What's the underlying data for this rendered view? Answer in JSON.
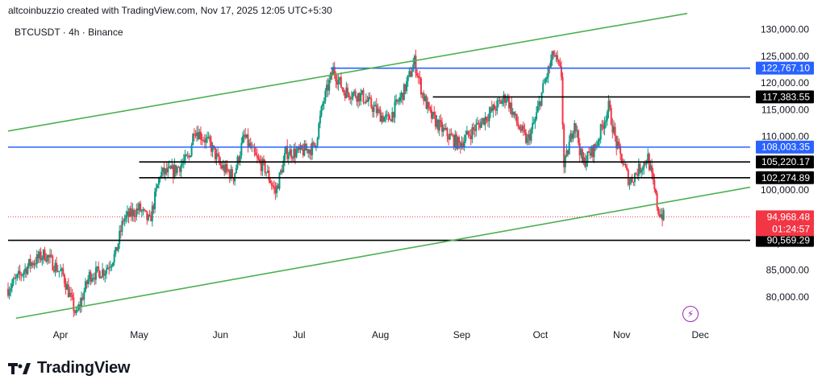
{
  "header": {
    "attribution": "altcoinbuzzio created with TradingView.com, Nov 17, 2025 12:05 UTC+5:30"
  },
  "symbol": {
    "label": "BTCUSDT · 4h · Binance"
  },
  "footer": {
    "brand": "TradingView"
  },
  "chart_data": {
    "type": "candlestick",
    "symbol": "BTCUSDT",
    "interval": "4h",
    "exchange": "Binance",
    "ylim": [
      75000,
      132500
    ],
    "x_range": [
      "2025-03-12",
      "2025-12-20"
    ],
    "y_ticks": [
      80000,
      85000,
      90000,
      95000,
      100000,
      105000,
      110000,
      115000,
      120000,
      125000,
      130000
    ],
    "y_tick_labels": [
      "80,000.00",
      "85,000.00",
      "90,000.00",
      "95,000.00",
      "100,000.00",
      "105,000.00",
      "110,000.00",
      "115,000.00",
      "120,000.00",
      "125,000.00",
      "130,000.00"
    ],
    "x_ticks": [
      {
        "label": "Apr",
        "date": "2025-04-01"
      },
      {
        "label": "May",
        "date": "2025-05-01"
      },
      {
        "label": "Jun",
        "date": "2025-06-01"
      },
      {
        "label": "Jul",
        "date": "2025-07-01"
      },
      {
        "label": "Aug",
        "date": "2025-08-01"
      },
      {
        "label": "Sep",
        "date": "2025-09-01"
      },
      {
        "label": "Oct",
        "date": "2025-10-01"
      },
      {
        "label": "Nov",
        "date": "2025-11-01"
      },
      {
        "label": "Dec",
        "date": "2025-12-01"
      }
    ],
    "price_path": [
      [
        "2025-03-12",
        81500
      ],
      [
        "2025-03-20",
        86000
      ],
      [
        "2025-03-26",
        88000
      ],
      [
        "2025-04-02",
        84000
      ],
      [
        "2025-04-07",
        76500
      ],
      [
        "2025-04-12",
        84000
      ],
      [
        "2025-04-18",
        85000
      ],
      [
        "2025-04-22",
        88000
      ],
      [
        "2025-04-25",
        94500
      ],
      [
        "2025-05-01",
        96500
      ],
      [
        "2025-05-05",
        94000
      ],
      [
        "2025-05-09",
        103000
      ],
      [
        "2025-05-14",
        103500
      ],
      [
        "2025-05-20",
        106000
      ],
      [
        "2025-05-22",
        111500
      ],
      [
        "2025-05-28",
        108500
      ],
      [
        "2025-06-01",
        104500
      ],
      [
        "2025-06-06",
        102500
      ],
      [
        "2025-06-10",
        110000
      ],
      [
        "2025-06-15",
        105500
      ],
      [
        "2025-06-18",
        104000
      ],
      [
        "2025-06-22",
        99500
      ],
      [
        "2025-06-26",
        107000
      ],
      [
        "2025-07-01",
        107000
      ],
      [
        "2025-07-07",
        108000
      ],
      [
        "2025-07-10",
        116000
      ],
      [
        "2025-07-14",
        122500
      ],
      [
        "2025-07-18",
        118500
      ],
      [
        "2025-07-25",
        117500
      ],
      [
        "2025-08-01",
        114000
      ],
      [
        "2025-08-04",
        113000
      ],
      [
        "2025-08-10",
        118500
      ],
      [
        "2025-08-14",
        124000
      ],
      [
        "2025-08-17",
        118000
      ],
      [
        "2025-08-20",
        114000
      ],
      [
        "2025-08-25",
        111000
      ],
      [
        "2025-08-31",
        108500
      ],
      [
        "2025-09-05",
        111000
      ],
      [
        "2025-09-10",
        113500
      ],
      [
        "2025-09-18",
        117500
      ],
      [
        "2025-09-22",
        112500
      ],
      [
        "2025-09-26",
        109000
      ],
      [
        "2025-09-29",
        113000
      ],
      [
        "2025-10-02",
        119000
      ],
      [
        "2025-10-06",
        125500
      ],
      [
        "2025-10-09",
        121500
      ],
      [
        "2025-10-10",
        104000
      ],
      [
        "2025-10-14",
        113000
      ],
      [
        "2025-10-17",
        105000
      ],
      [
        "2025-10-22",
        108000
      ],
      [
        "2025-10-27",
        115500
      ],
      [
        "2025-10-30",
        108500
      ],
      [
        "2025-11-04",
        101500
      ],
      [
        "2025-11-07",
        103500
      ],
      [
        "2025-11-11",
        106000
      ],
      [
        "2025-11-13",
        101000
      ],
      [
        "2025-11-15",
        96000
      ],
      [
        "2025-11-17",
        94968
      ]
    ],
    "horizontal_levels": [
      {
        "value": 122767.1,
        "label": "122,767.10",
        "color": "#2962ff",
        "from": "2025-07-13",
        "to": "2025-12-20"
      },
      {
        "value": 117383.55,
        "label": "117,383.55",
        "color": "#000000",
        "from": "2025-08-21",
        "to": "2025-12-20"
      },
      {
        "value": 108003.35,
        "label": "108,003.35",
        "color": "#2962ff",
        "from": "2025-03-12",
        "to": "2025-12-20"
      },
      {
        "value": 105220.17,
        "label": "105,220.17",
        "color": "#000000",
        "from": "2025-05-01",
        "to": "2025-12-20"
      },
      {
        "value": 102274.89,
        "label": "102,274.89",
        "color": "#000000",
        "from": "2025-05-01",
        "to": "2025-12-20"
      },
      {
        "value": 90569.29,
        "label": "90,569.29",
        "color": "#000000",
        "from": "2025-03-12",
        "to": "2025-12-20"
      }
    ],
    "trendlines": [
      {
        "name": "",
        "color": "#4caf50",
        "points": [
          [
            "2025-03-12",
            111000
          ],
          [
            "2025-11-26",
            133000
          ]
        ]
      },
      {
        "name": "",
        "color": "#4caf50",
        "points": [
          [
            "2025-03-15",
            76000
          ],
          [
            "2025-12-20",
            100500
          ]
        ]
      }
    ],
    "last_price": {
      "value": 94968.48,
      "label": "94,968.48",
      "countdown": "01:24:57",
      "color": "#f23645"
    },
    "grid": false
  }
}
